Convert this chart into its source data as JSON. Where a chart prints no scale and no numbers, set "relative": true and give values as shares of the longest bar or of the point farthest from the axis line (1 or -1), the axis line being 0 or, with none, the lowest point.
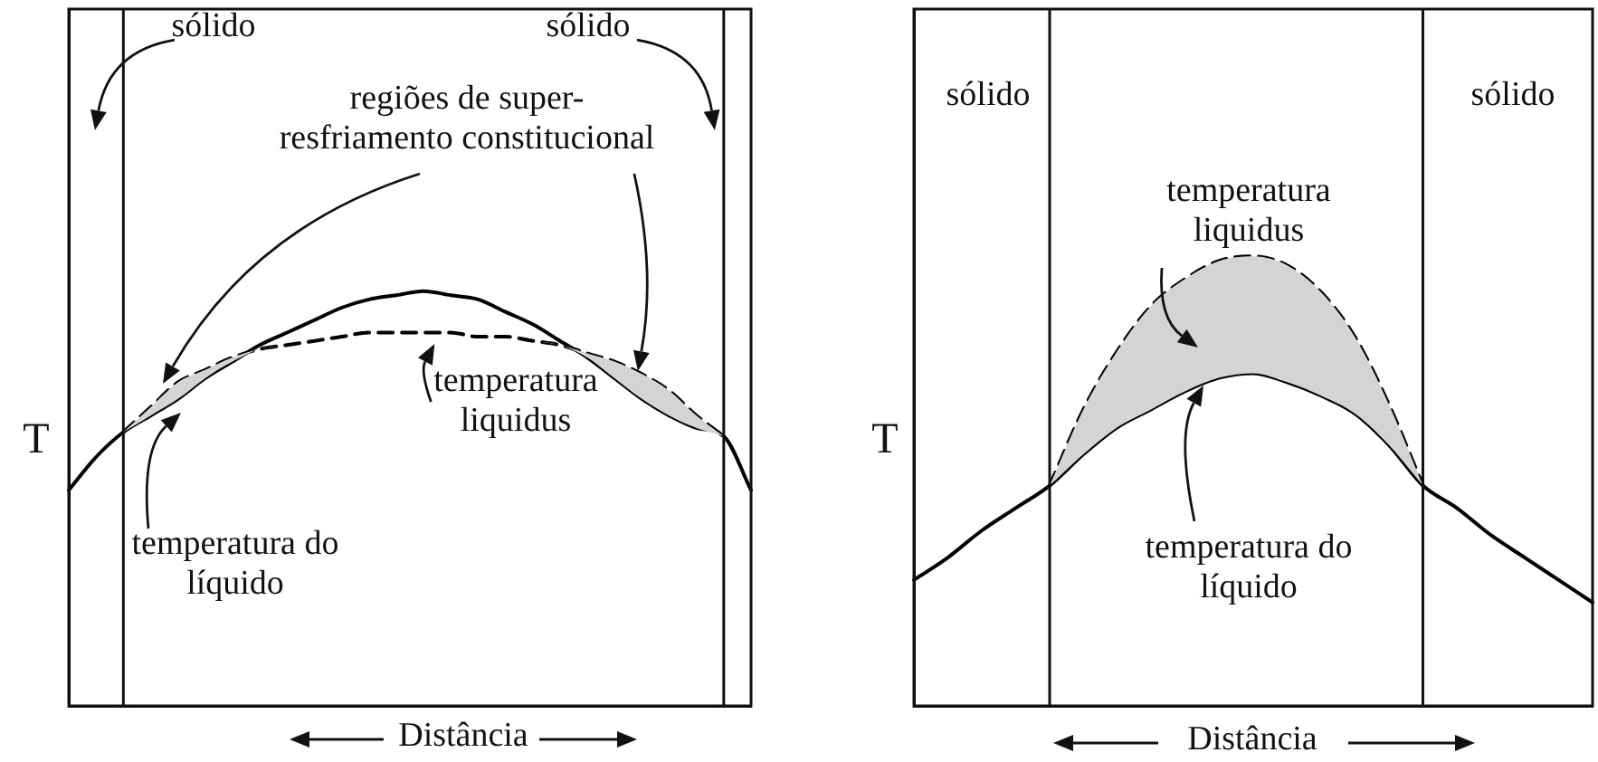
{
  "chart_data": [
    {
      "type": "line",
      "relative": true,
      "ylabel": "T",
      "xlabel": "Distância",
      "tick_labels": false,
      "legend": false,
      "marker": "none",
      "categories": [
        null,
        null,
        null,
        null,
        null,
        null,
        null,
        null,
        null,
        null,
        null,
        null,
        null,
        null,
        null,
        null,
        null,
        null,
        null,
        null,
        null,
        null,
        null,
        null,
        null,
        null
      ],
      "series": [
        {
          "color": "#000000",
          "line_style": "solid",
          "values": [
            0.52,
            0.6,
            0.66,
            0.7,
            0.74,
            0.79,
            0.83,
            0.87,
            0.9,
            0.93,
            0.96,
            0.98,
            0.99,
            1.0,
            0.99,
            0.98,
            0.95,
            0.92,
            0.88,
            0.84,
            0.79,
            0.74,
            0.7,
            0.67,
            0.65,
            0.52
          ]
        },
        {
          "color": "#000000",
          "line_style": "dashed",
          "values": [
            null,
            null,
            0.66,
            0.72,
            0.78,
            0.81,
            0.84,
            0.86,
            0.87,
            0.88,
            0.89,
            0.9,
            0.9,
            0.9,
            0.9,
            0.89,
            0.89,
            0.88,
            0.87,
            0.85,
            0.83,
            0.8,
            0.76,
            0.7,
            0.65,
            null
          ],
          "lower": [
            null,
            null,
            0.66,
            0.7,
            0.74,
            0.79,
            0.83,
            0.86,
            0.87,
            0.88,
            0.89,
            0.9,
            0.9,
            0.9,
            0.9,
            0.89,
            0.89,
            0.88,
            0.87,
            0.84,
            0.79,
            0.74,
            0.7,
            0.67,
            0.65,
            null
          ],
          "upper": [
            null,
            null,
            0.66,
            0.72,
            0.78,
            0.81,
            0.84,
            0.86,
            0.87,
            0.88,
            0.89,
            0.9,
            0.9,
            0.9,
            0.9,
            0.89,
            0.89,
            0.88,
            0.87,
            0.85,
            0.83,
            0.8,
            0.76,
            0.7,
            0.65,
            null
          ]
        }
      ],
      "annotations": [
        "sólido",
        "sólido",
        "regiões de super-resfriamento constitucional",
        "temperatura liquidus",
        "temperatura do líquido"
      ]
    },
    {
      "type": "line",
      "relative": true,
      "ylabel": "T",
      "xlabel": "Distância",
      "tick_labels": false,
      "legend": false,
      "marker": "none",
      "categories": [
        null,
        null,
        null,
        null,
        null,
        null,
        null,
        null,
        null,
        null,
        null,
        null,
        null,
        null,
        null,
        null,
        null,
        null,
        null,
        null,
        null
      ],
      "series": [
        {
          "color": "#000000",
          "line_style": "solid",
          "values": [
            0.28,
            0.33,
            0.39,
            0.44,
            0.49,
            0.56,
            0.62,
            0.66,
            0.7,
            0.73,
            0.74,
            0.72,
            0.69,
            0.65,
            0.58,
            0.49,
            0.44,
            0.38,
            0.33,
            0.28,
            0.23
          ]
        },
        {
          "color": "#000000",
          "line_style": "dashed",
          "values": [
            null,
            null,
            null,
            null,
            0.49,
            0.66,
            0.79,
            0.89,
            0.95,
            0.99,
            1.0,
            0.98,
            0.92,
            0.82,
            0.67,
            0.49,
            null,
            null,
            null,
            null,
            null
          ],
          "lower": [
            null,
            null,
            null,
            null,
            0.49,
            0.56,
            0.62,
            0.66,
            0.7,
            0.73,
            0.74,
            0.72,
            0.69,
            0.65,
            0.58,
            0.49,
            null,
            null,
            null,
            null,
            null
          ],
          "upper": [
            null,
            null,
            null,
            null,
            0.49,
            0.66,
            0.79,
            0.89,
            0.95,
            0.99,
            1.0,
            0.98,
            0.92,
            0.82,
            0.67,
            0.49,
            null,
            null,
            null,
            null,
            null
          ]
        }
      ],
      "annotations": [
        "sólido",
        "sólido",
        "temperatura liquidus",
        "temperatura do líquido"
      ]
    }
  ]
}
